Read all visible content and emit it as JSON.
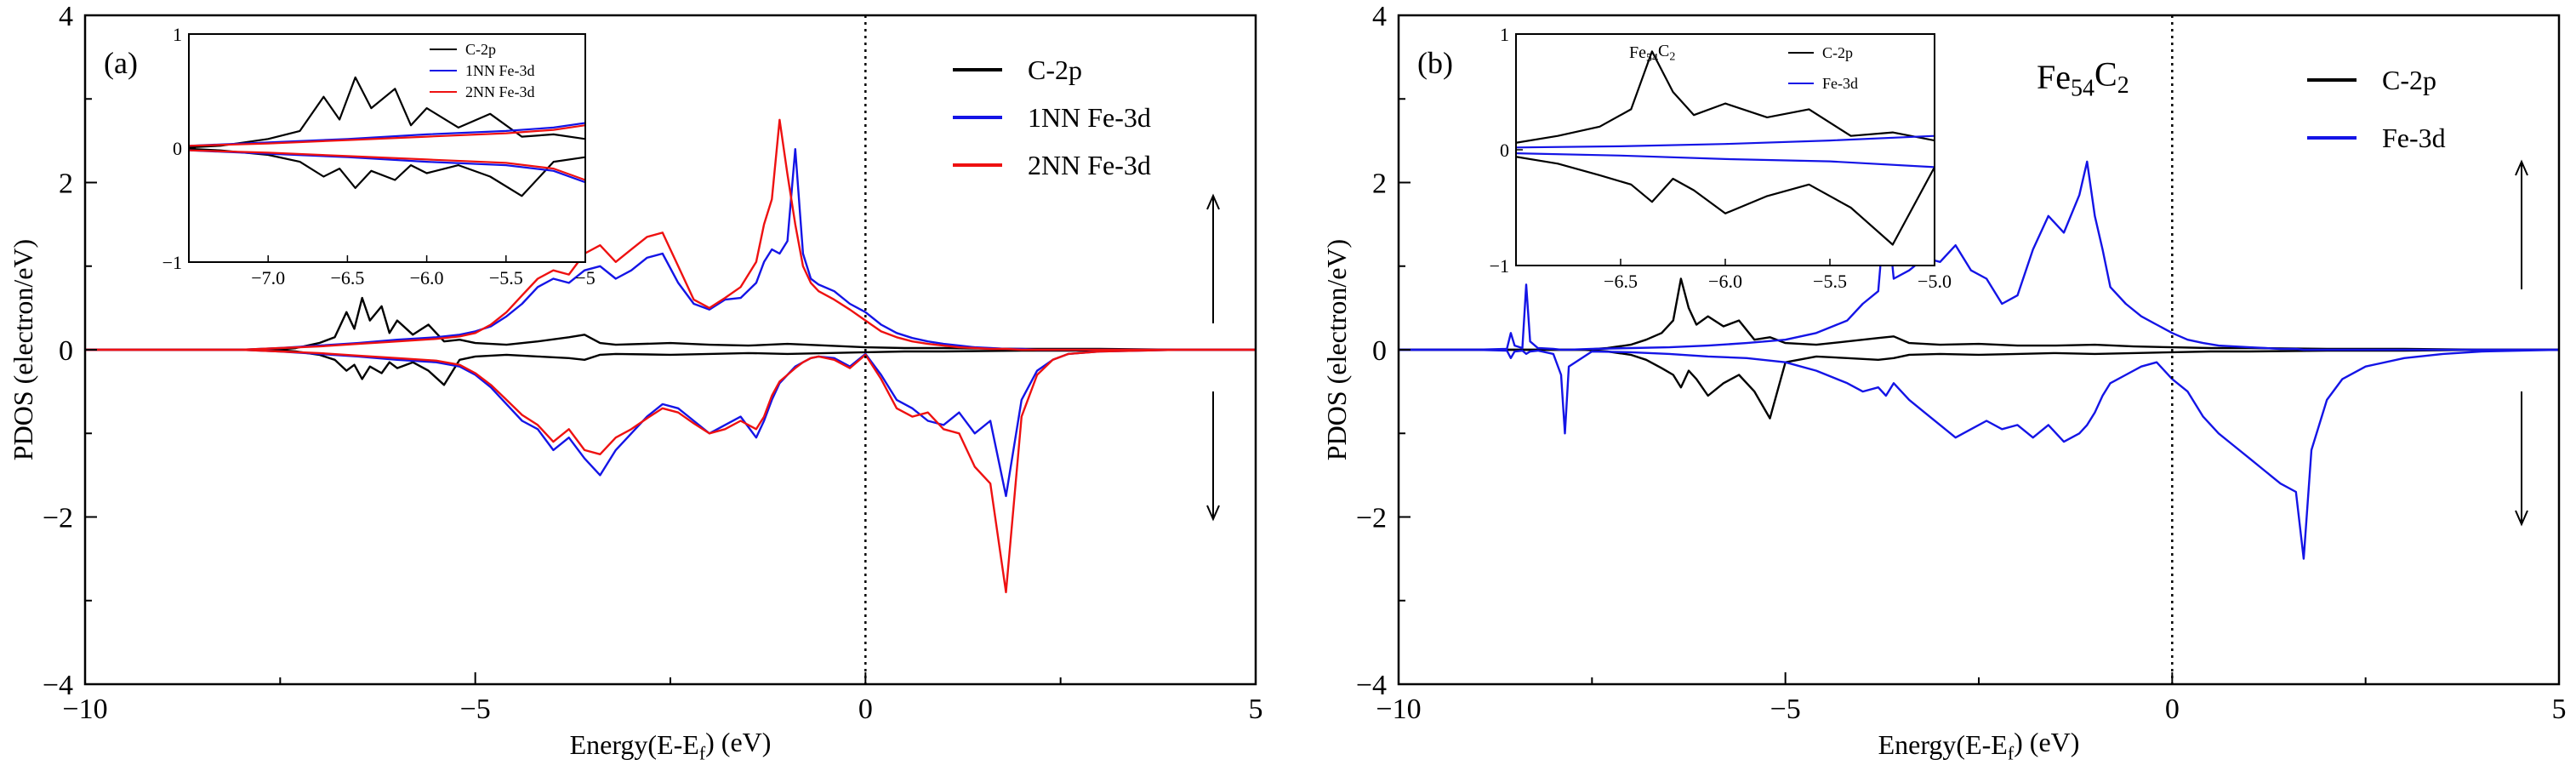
{
  "chart_data": [
    {
      "type": "line",
      "panel_label": "(a)",
      "title": "",
      "xlabel": "Energy(E-E_f) (eV)",
      "xlabel_parts": {
        "pre": "Energy(E-E",
        "sub": "f",
        "post": ") (eV)"
      },
      "ylabel": "PDOS (electron/eV)",
      "xlim": [
        -10,
        5
      ],
      "ylim": [
        -4,
        4
      ],
      "xticks": [
        -10,
        -5,
        0,
        5
      ],
      "xtick_labels": [
        "−10",
        "−5",
        "0",
        "5"
      ],
      "yticks": [
        -4,
        -2,
        0,
        2,
        4
      ],
      "ytick_labels": [
        "−4",
        "−2",
        "0",
        "2",
        "4"
      ],
      "fermi_line_x": 0,
      "legend_position": "top-right",
      "spin_arrows": [
        "up",
        "down"
      ],
      "series": [
        {
          "name": "C-2p",
          "color": "#000000",
          "width": 2.4,
          "x": [
            -10,
            -7.6,
            -7.3,
            -7.0,
            -6.8,
            -6.65,
            -6.55,
            -6.45,
            -6.35,
            -6.2,
            -6.1,
            -6.0,
            -5.8,
            -5.6,
            -5.4,
            -5.2,
            -5.0,
            -4.6,
            -4.2,
            -3.8,
            -3.6,
            -3.4,
            -3.2,
            -2.5,
            -2.0,
            -1.5,
            -1.0,
            -0.5,
            0.0,
            0.5,
            1.0,
            2.0,
            3.0,
            4.0,
            5.0
          ],
          "up": [
            0,
            0,
            0.02,
            0.08,
            0.15,
            0.45,
            0.25,
            0.62,
            0.35,
            0.52,
            0.2,
            0.35,
            0.18,
            0.3,
            0.1,
            0.12,
            0.08,
            0.06,
            0.1,
            0.15,
            0.18,
            0.08,
            0.06,
            0.08,
            0.06,
            0.05,
            0.07,
            0.05,
            0.03,
            0.02,
            0.02,
            0.01,
            0.01,
            0,
            0
          ],
          "down": [
            0,
            0,
            -0.02,
            -0.06,
            -0.12,
            -0.25,
            -0.18,
            -0.35,
            -0.2,
            -0.28,
            -0.15,
            -0.22,
            -0.15,
            -0.25,
            -0.42,
            -0.12,
            -0.08,
            -0.06,
            -0.08,
            -0.1,
            -0.12,
            -0.06,
            -0.05,
            -0.06,
            -0.05,
            -0.04,
            -0.05,
            -0.04,
            -0.03,
            -0.02,
            -0.02,
            -0.01,
            -0.01,
            0,
            0
          ]
        },
        {
          "name": "1NN Fe-3d",
          "color": "#1414e6",
          "width": 2.4,
          "x": [
            -10,
            -8,
            -7.5,
            -7,
            -6.5,
            -6,
            -5.5,
            -5.2,
            -5,
            -4.8,
            -4.6,
            -4.4,
            -4.2,
            -4.0,
            -3.8,
            -3.6,
            -3.4,
            -3.2,
            -3.0,
            -2.8,
            -2.6,
            -2.4,
            -2.2,
            -2.0,
            -1.8,
            -1.6,
            -1.4,
            -1.3,
            -1.2,
            -1.1,
            -1.0,
            -0.9,
            -0.8,
            -0.7,
            -0.6,
            -0.4,
            -0.2,
            0.0,
            0.2,
            0.4,
            0.6,
            0.8,
            1.0,
            1.2,
            1.4,
            1.6,
            1.8,
            2.0,
            2.2,
            2.4,
            2.6,
            3.0,
            3.5,
            4.0,
            5.0
          ],
          "up": [
            0,
            0,
            0.02,
            0.05,
            0.08,
            0.12,
            0.15,
            0.18,
            0.22,
            0.28,
            0.4,
            0.55,
            0.75,
            0.85,
            0.8,
            0.95,
            1.0,
            0.85,
            0.95,
            1.1,
            1.15,
            0.8,
            0.55,
            0.48,
            0.6,
            0.62,
            0.8,
            1.05,
            1.2,
            1.15,
            1.3,
            2.4,
            1.15,
            0.85,
            0.78,
            0.7,
            0.55,
            0.45,
            0.3,
            0.2,
            0.14,
            0.1,
            0.07,
            0.05,
            0.03,
            0.02,
            0.01,
            0.01,
            0,
            0,
            0,
            0,
            0,
            0,
            0
          ],
          "down": [
            0,
            0,
            -0.02,
            -0.05,
            -0.08,
            -0.12,
            -0.15,
            -0.2,
            -0.3,
            -0.45,
            -0.65,
            -0.85,
            -0.95,
            -1.2,
            -1.05,
            -1.3,
            -1.5,
            -1.2,
            -1.0,
            -0.8,
            -0.65,
            -0.7,
            -0.85,
            -1.0,
            -0.9,
            -0.8,
            -1.05,
            -0.85,
            -0.6,
            -0.4,
            -0.3,
            -0.2,
            -0.15,
            -0.1,
            -0.08,
            -0.1,
            -0.2,
            -0.05,
            -0.3,
            -0.6,
            -0.7,
            -0.85,
            -0.9,
            -0.75,
            -1.0,
            -0.85,
            -1.75,
            -0.6,
            -0.25,
            -0.12,
            -0.05,
            -0.02,
            -0.01,
            0,
            0
          ]
        },
        {
          "name": "2NN Fe-3d",
          "color": "#ee1111",
          "width": 2.4,
          "x": [
            -10,
            -8,
            -7.5,
            -7,
            -6.5,
            -6,
            -5.5,
            -5.2,
            -5,
            -4.8,
            -4.6,
            -4.4,
            -4.2,
            -4.0,
            -3.8,
            -3.6,
            -3.4,
            -3.2,
            -3.0,
            -2.8,
            -2.6,
            -2.4,
            -2.2,
            -2.0,
            -1.8,
            -1.6,
            -1.4,
            -1.3,
            -1.2,
            -1.1,
            -1.0,
            -0.9,
            -0.8,
            -0.7,
            -0.6,
            -0.4,
            -0.2,
            0.0,
            0.2,
            0.4,
            0.6,
            0.8,
            1.0,
            1.2,
            1.4,
            1.6,
            1.8,
            2.0,
            2.2,
            2.4,
            2.6,
            3.0,
            3.5,
            4.0,
            5.0
          ],
          "up": [
            0,
            0,
            0.02,
            0.04,
            0.07,
            0.1,
            0.13,
            0.16,
            0.2,
            0.3,
            0.45,
            0.65,
            0.85,
            0.95,
            0.9,
            1.15,
            1.25,
            1.05,
            1.2,
            1.35,
            1.4,
            1.0,
            0.6,
            0.5,
            0.62,
            0.75,
            1.05,
            1.5,
            1.8,
            2.75,
            2.1,
            1.5,
            1.0,
            0.8,
            0.7,
            0.6,
            0.48,
            0.35,
            0.22,
            0.15,
            0.1,
            0.07,
            0.05,
            0.03,
            0.02,
            0.01,
            0.01,
            0,
            0,
            0,
            0,
            0,
            0,
            0,
            0
          ],
          "down": [
            0,
            0,
            -0.02,
            -0.04,
            -0.07,
            -0.1,
            -0.13,
            -0.18,
            -0.28,
            -0.42,
            -0.6,
            -0.78,
            -0.9,
            -1.1,
            -0.95,
            -1.2,
            -1.25,
            -1.05,
            -0.95,
            -0.82,
            -0.7,
            -0.75,
            -0.88,
            -1.0,
            -0.95,
            -0.85,
            -0.95,
            -0.8,
            -0.55,
            -0.38,
            -0.3,
            -0.22,
            -0.15,
            -0.1,
            -0.08,
            -0.12,
            -0.22,
            -0.06,
            -0.35,
            -0.7,
            -0.8,
            -0.75,
            -0.95,
            -1.0,
            -1.4,
            -1.6,
            -2.9,
            -0.8,
            -0.3,
            -0.12,
            -0.05,
            -0.02,
            -0.01,
            0,
            0
          ]
        }
      ],
      "inset": {
        "xlim": [
          -7.5,
          -5.0
        ],
        "ylim": [
          -1,
          1
        ],
        "xticks": [
          -7.0,
          -6.5,
          -6.0,
          -5.5,
          -5.0
        ],
        "xtick_labels": [
          "−7.0",
          "−6.5",
          "−6.0",
          "−5.5",
          "−5"
        ],
        "yticks": [
          -1,
          0,
          1
        ],
        "ytick_labels": [
          "−1",
          "0",
          "1"
        ],
        "title": "",
        "legend": [
          "C-2p",
          "1NN Fe-3d",
          "2NN Fe-3d"
        ]
      }
    },
    {
      "type": "line",
      "panel_label": "(b)",
      "title": "",
      "annotation": "Fe54C2",
      "annotation_parts": {
        "base1": "Fe",
        "sub1": "54",
        "base2": "C",
        "sub2": "2"
      },
      "xlabel": "Energy(E-E_f) (eV)",
      "xlabel_parts": {
        "pre": "Energy(E-E",
        "sub": "f",
        "post": ") (eV)"
      },
      "ylabel": "PDOS (electron/eV)",
      "xlim": [
        -10,
        5
      ],
      "ylim": [
        -4,
        4
      ],
      "xticks": [
        -10,
        -5,
        0,
        5
      ],
      "xtick_labels": [
        "−10",
        "−5",
        "0",
        "5"
      ],
      "yticks": [
        -4,
        -2,
        0,
        2,
        4
      ],
      "ytick_labels": [
        "−4",
        "−2",
        "0",
        "2",
        "4"
      ],
      "fermi_line_x": 0,
      "legend_position": "top-right",
      "spin_arrows": [
        "up",
        "down"
      ],
      "series": [
        {
          "name": "C-2p",
          "color": "#000000",
          "width": 2.4,
          "x": [
            -10,
            -7.6,
            -7.3,
            -7.0,
            -6.8,
            -6.6,
            -6.45,
            -6.35,
            -6.25,
            -6.15,
            -6.0,
            -5.8,
            -5.6,
            -5.4,
            -5.2,
            -5.0,
            -4.6,
            -4.2,
            -3.8,
            -3.6,
            -3.4,
            -3.0,
            -2.5,
            -2.0,
            -1.5,
            -1.0,
            -0.5,
            0.0,
            0.5,
            1.0,
            2.0,
            3.0,
            4.0,
            5.0
          ],
          "up": [
            0,
            0,
            0.02,
            0.06,
            0.12,
            0.2,
            0.35,
            0.85,
            0.5,
            0.3,
            0.4,
            0.28,
            0.35,
            0.12,
            0.15,
            0.08,
            0.06,
            0.1,
            0.14,
            0.16,
            0.08,
            0.06,
            0.07,
            0.05,
            0.05,
            0.06,
            0.04,
            0.03,
            0.02,
            0.02,
            0.01,
            0.01,
            0,
            0
          ],
          "down": [
            0,
            0,
            -0.02,
            -0.06,
            -0.12,
            -0.22,
            -0.3,
            -0.45,
            -0.25,
            -0.35,
            -0.55,
            -0.4,
            -0.3,
            -0.5,
            -0.82,
            -0.15,
            -0.08,
            -0.1,
            -0.12,
            -0.1,
            -0.06,
            -0.05,
            -0.06,
            -0.05,
            -0.04,
            -0.05,
            -0.04,
            -0.03,
            -0.02,
            -0.02,
            -0.01,
            -0.01,
            0,
            0
          ]
        },
        {
          "name": "Fe-3d",
          "color": "#1414e6",
          "width": 2.4,
          "x": [
            -10,
            -9.0,
            -8.6,
            -8.55,
            -8.5,
            -8.4,
            -8.35,
            -8.3,
            -8.2,
            -8.0,
            -7.9,
            -7.85,
            -7.8,
            -7.5,
            -7.0,
            -6.5,
            -6.0,
            -5.5,
            -5.0,
            -4.6,
            -4.2,
            -4.0,
            -3.8,
            -3.7,
            -3.6,
            -3.4,
            -3.2,
            -3.0,
            -2.8,
            -2.6,
            -2.4,
            -2.2,
            -2.0,
            -1.8,
            -1.6,
            -1.4,
            -1.2,
            -1.1,
            -1.0,
            -0.9,
            -0.8,
            -0.6,
            -0.4,
            -0.2,
            0.0,
            0.2,
            0.4,
            0.6,
            0.8,
            1.0,
            1.2,
            1.4,
            1.6,
            1.7,
            1.8,
            2.0,
            2.2,
            2.5,
            3.0,
            3.5,
            4.0,
            5.0
          ],
          "up": [
            0,
            0,
            0.01,
            0.2,
            0.05,
            0.02,
            0.78,
            0.1,
            0.02,
            0.01,
            0,
            0,
            0,
            0.01,
            0.02,
            0.03,
            0.05,
            0.08,
            0.12,
            0.2,
            0.35,
            0.55,
            0.7,
            1.8,
            0.85,
            0.95,
            1.1,
            1.05,
            1.25,
            0.95,
            0.85,
            0.55,
            0.65,
            1.2,
            1.6,
            1.4,
            1.85,
            2.25,
            1.6,
            1.2,
            0.75,
            0.55,
            0.4,
            0.3,
            0.2,
            0.12,
            0.08,
            0.05,
            0.04,
            0.03,
            0.02,
            0.01,
            0.01,
            0,
            0,
            0,
            0,
            0,
            0,
            0,
            0,
            0
          ],
          "down": [
            0,
            0,
            -0.01,
            -0.1,
            -0.02,
            -0.01,
            -0.05,
            -0.02,
            -0.01,
            -0.05,
            -0.3,
            -1.0,
            -0.2,
            -0.02,
            -0.03,
            -0.05,
            -0.08,
            -0.1,
            -0.15,
            -0.25,
            -0.4,
            -0.5,
            -0.45,
            -0.55,
            -0.4,
            -0.6,
            -0.75,
            -0.9,
            -1.05,
            -0.95,
            -0.85,
            -0.95,
            -0.9,
            -1.05,
            -0.9,
            -1.1,
            -1.0,
            -0.9,
            -0.75,
            -0.55,
            -0.4,
            -0.3,
            -0.2,
            -0.15,
            -0.35,
            -0.5,
            -0.8,
            -1.0,
            -1.15,
            -1.3,
            -1.45,
            -1.6,
            -1.7,
            -2.5,
            -1.2,
            -0.6,
            -0.35,
            -0.2,
            -0.1,
            -0.05,
            -0.02,
            0
          ]
        }
      ],
      "inset": {
        "xlim": [
          -7.0,
          -5.0
        ],
        "ylim": [
          -1,
          1
        ],
        "xticks": [
          -6.5,
          -6.0,
          -5.5,
          -5.0
        ],
        "xtick_labels": [
          "−6.5",
          "−6.0",
          "−5.5",
          "−5.0"
        ],
        "yticks": [
          -1,
          0,
          1
        ],
        "ytick_labels": [
          "−1",
          "0",
          "1"
        ],
        "title": "Fe54C2",
        "title_parts": {
          "base1": "Fe",
          "sub1": "54",
          "base2": "C",
          "sub2": "2"
        },
        "legend": [
          "C-2p",
          "Fe-3d"
        ]
      }
    }
  ]
}
